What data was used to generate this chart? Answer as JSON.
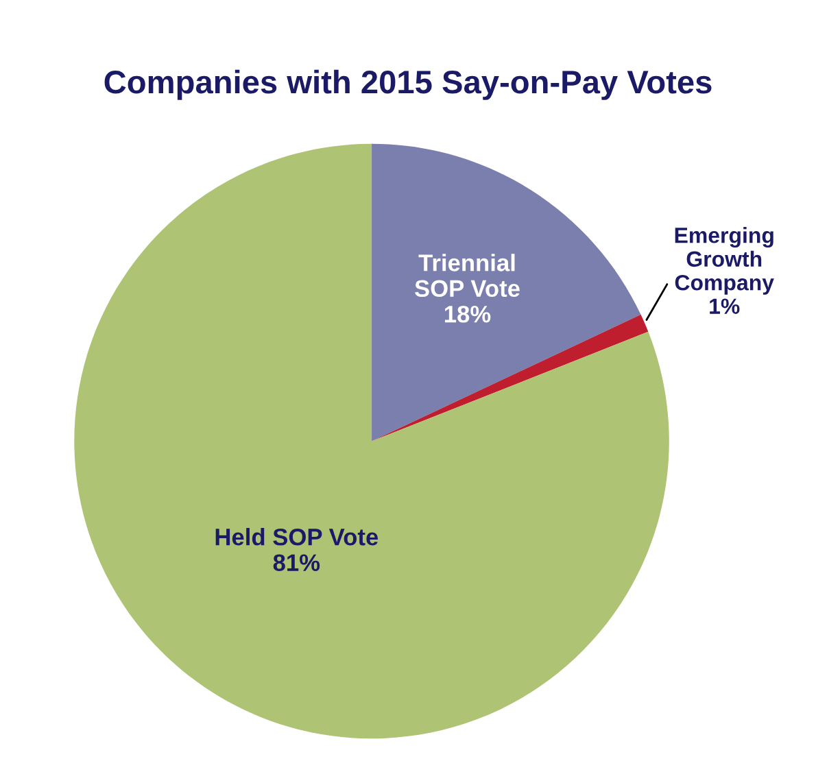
{
  "chart_data": {
    "type": "pie",
    "title": "Companies with 2015 Say-on-Pay Votes",
    "categories": [
      "Triennial\nSOP Vote",
      "Emerging\nGrowth\nCompany",
      "Held SOP Vote"
    ],
    "values": [
      18,
      1,
      81
    ],
    "colors": [
      "#7b7fad",
      "#be1e2d",
      "#aec373"
    ],
    "value_labels": [
      "18%",
      "1%",
      "81%"
    ],
    "legend": false
  }
}
